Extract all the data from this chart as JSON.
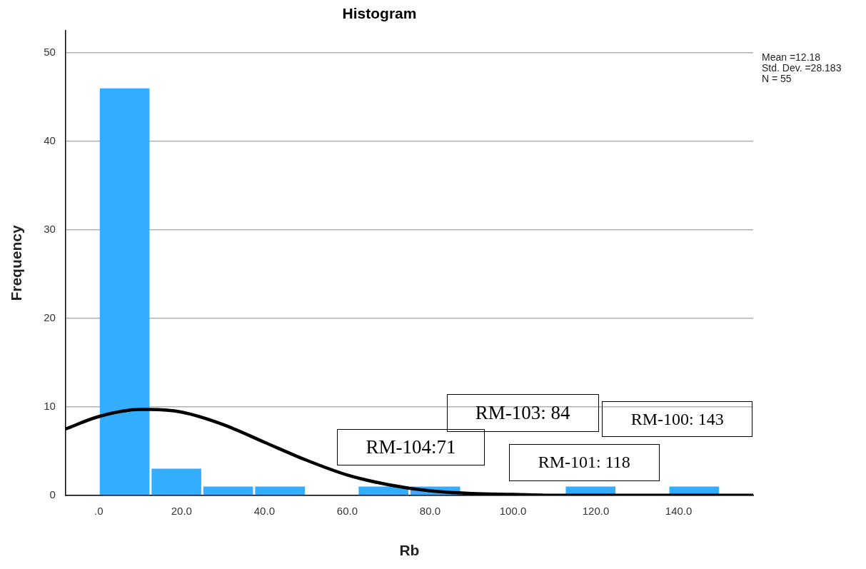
{
  "chart_data": {
    "type": "histogram",
    "title": "Histogram",
    "xlabel": "Rb",
    "ylabel": "Frequency",
    "bins": [
      0,
      12.5,
      25,
      37.5,
      50,
      62.5,
      75,
      87.5,
      100,
      112.5,
      125,
      137.5,
      150
    ],
    "values": [
      46,
      3,
      1,
      1,
      0,
      1,
      1,
      0,
      0,
      1,
      0,
      1
    ],
    "color": "#33adff",
    "series": [
      {
        "type": "line",
        "color": "#000000",
        "x": [
          -8,
          0,
          10,
          12.2,
          20,
          30,
          40,
          50,
          60,
          70,
          80,
          90,
          100,
          110,
          120,
          140,
          158
        ],
        "values": [
          7.5,
          8.9,
          9.7,
          9.7,
          9.4,
          8.0,
          6.0,
          4.0,
          2.3,
          1.2,
          0.5,
          0.2,
          0.1,
          0,
          0,
          0,
          0
        ]
      }
    ],
    "xlim": [
      -8,
      158
    ],
    "xticks": [
      {
        "value": 0,
        "label": ".0"
      },
      {
        "value": 20,
        "label": "20.0"
      },
      {
        "value": 40,
        "label": "40.0"
      },
      {
        "value": 60,
        "label": "60.0"
      },
      {
        "value": 80,
        "label": "80.0"
      },
      {
        "value": 100,
        "label": "100.0"
      },
      {
        "value": 120,
        "label": "120.0"
      },
      {
        "value": 140,
        "label": "140.0"
      }
    ],
    "ylim": [
      0,
      52.5
    ],
    "yticks": [
      0,
      10,
      20,
      30,
      40,
      50
    ],
    "grid": "y",
    "legend": false,
    "annotations": [
      "Mean =12.18",
      "Std. Dev. =28.183",
      "N = 55",
      "RM-103: 84",
      "RM-104:71",
      "RM-101: 118",
      "RM-100: 143"
    ]
  }
}
